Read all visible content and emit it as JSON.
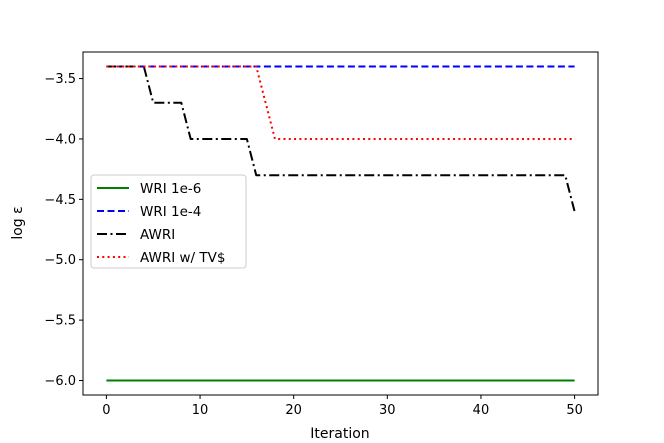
{
  "chart_data": {
    "type": "line",
    "xlabel": "Iteration",
    "ylabel": "log ε",
    "xlim": [
      -2.5,
      52.5
    ],
    "ylim": [
      -6.12,
      -3.28
    ],
    "xticks": [
      0,
      10,
      20,
      30,
      40,
      50
    ],
    "yticks": [
      -6.0,
      -5.5,
      -5.0,
      -4.5,
      -4.0,
      -3.5
    ],
    "xtick_labels": [
      "0",
      "10",
      "20",
      "30",
      "40",
      "50"
    ],
    "ytick_labels": [
      "−6.0",
      "−5.5",
      "−5.0",
      "−4.5",
      "−4.0",
      "−3.5"
    ],
    "grid": false,
    "legend_position": "center-left",
    "series": [
      {
        "name": "WRI 1e-6",
        "color": "#008000",
        "dash": "solid",
        "x": [
          0,
          50
        ],
        "y": [
          -6.0,
          -6.0
        ]
      },
      {
        "name": "WRI 1e-4",
        "color": "#0000ff",
        "dash": "dashed",
        "x": [
          0,
          50
        ],
        "y": [
          -3.4,
          -3.4
        ]
      },
      {
        "name": "AWRI",
        "color": "#000000",
        "dash": "dashdot",
        "x": [
          0,
          4,
          5,
          8,
          9,
          15,
          16,
          48,
          49,
          50
        ],
        "y": [
          -3.4,
          -3.4,
          -3.7,
          -3.7,
          -4.0,
          -4.0,
          -4.3,
          -4.3,
          -4.3,
          -4.6
        ]
      },
      {
        "name": "AWRI w/ TV$",
        "color": "#ff0000",
        "dash": "dotted",
        "x": [
          0,
          16,
          18,
          50
        ],
        "y": [
          -3.4,
          -3.4,
          -4.0,
          -4.0
        ]
      }
    ]
  }
}
